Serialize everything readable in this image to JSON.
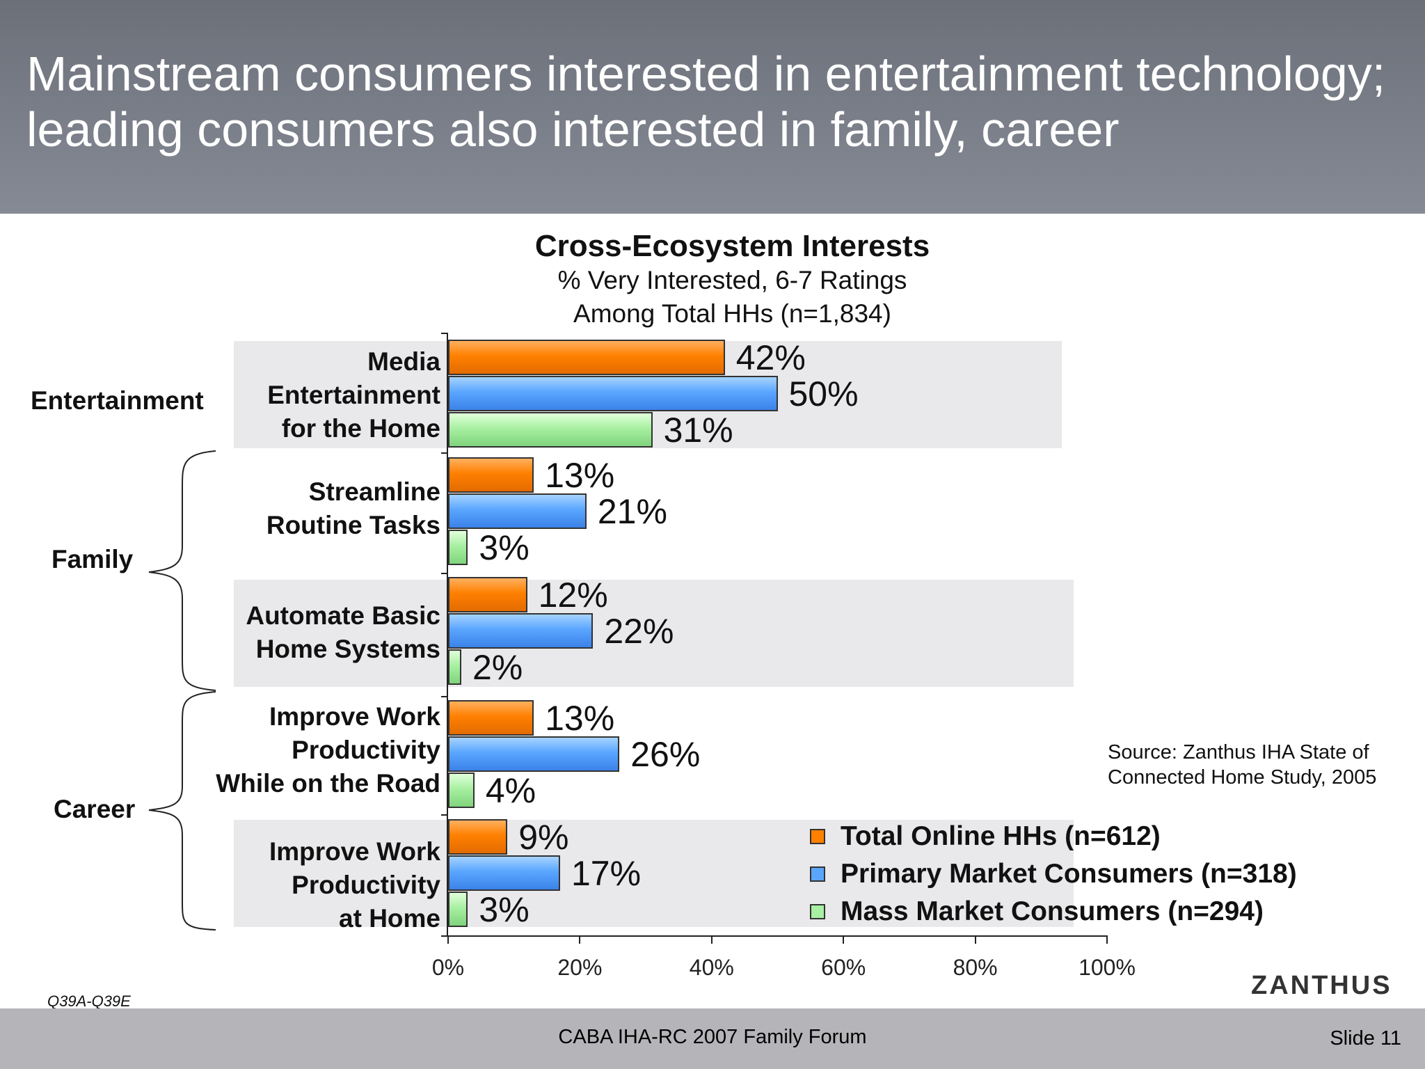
{
  "header": {
    "title": "Mainstream consumers interested in entertainment technology;\nleading consumers also interested in family, career"
  },
  "chart_data": {
    "type": "bar",
    "orientation": "horizontal",
    "title": "Cross-Ecosystem Interests",
    "subtitle_1": "% Very Interested, 6-7 Ratings",
    "subtitle_2": "Among Total HHs (n=1,834)",
    "categories": [
      "Media\nEntertainment\nfor the Home",
      "Streamline\nRoutine Tasks",
      "Automate Basic\nHome Systems",
      "Improve Work\nProductivity\nWhile on the Road",
      "Improve Work\nProductivity\nat Home"
    ],
    "groups": [
      {
        "name": "Entertainment"
      },
      {
        "name": "Family"
      },
      {
        "name": "Career"
      }
    ],
    "series": [
      {
        "name": "Total Online HHs (n=612)",
        "color": "#ff8000",
        "values": [
          42,
          13,
          12,
          13,
          9
        ],
        "labels": [
          "42%",
          "13%",
          "12%",
          "13%",
          "9%"
        ]
      },
      {
        "name": "Primary Market Consumers (n=318)",
        "color": "#5aa6ff",
        "values": [
          50,
          21,
          22,
          26,
          17
        ],
        "labels": [
          "50%",
          "21%",
          "22%",
          "26%",
          "17%"
        ]
      },
      {
        "name": "Mass Market Consumers (n=294)",
        "color": "#a8f0a2",
        "values": [
          31,
          3,
          2,
          4,
          3
        ],
        "labels": [
          "31%",
          "3%",
          "2%",
          "4%",
          "3%"
        ]
      }
    ],
    "xlim": [
      0,
      100
    ],
    "x_ticks": [
      "0%",
      "20%",
      "40%",
      "60%",
      "80%",
      "100%"
    ],
    "grid": false,
    "legend_position": "bottom-right",
    "source": "Source: Zanthus IHA State of\nConnected Home Study, 2005"
  },
  "notes": {
    "question_codes": "Q39A-Q39E",
    "logo": "ZANTHUS"
  },
  "footer": {
    "center": "CABA IHA-RC 2007 Family Forum",
    "right": "Slide 11"
  }
}
